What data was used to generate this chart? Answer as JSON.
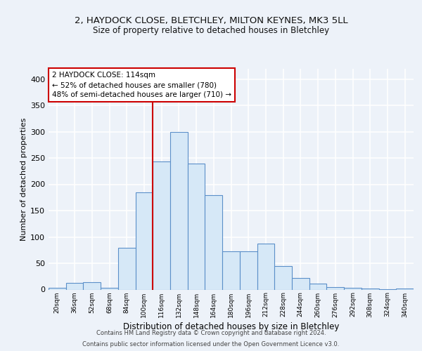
{
  "title": "2, HAYDOCK CLOSE, BLETCHLEY, MILTON KEYNES, MK3 5LL",
  "subtitle": "Size of property relative to detached houses in Bletchley",
  "xlabel": "Distribution of detached houses by size in Bletchley",
  "ylabel": "Number of detached properties",
  "bar_values": [
    3,
    13,
    14,
    3,
    80,
    185,
    243,
    300,
    240,
    180,
    73,
    73,
    88,
    45,
    22,
    11,
    5,
    3,
    2,
    1,
    2
  ],
  "bin_labels": [
    "20sqm",
    "36sqm",
    "52sqm",
    "68sqm",
    "84sqm",
    "100sqm",
    "116sqm",
    "132sqm",
    "148sqm",
    "164sqm",
    "180sqm",
    "196sqm",
    "212sqm",
    "228sqm",
    "244sqm",
    "260sqm",
    "276sqm",
    "292sqm",
    "308sqm",
    "324sqm",
    "340sqm"
  ],
  "bar_color": "#d6e8f7",
  "bar_edge_color": "#5b8fc9",
  "vline_color": "#cc0000",
  "annotation_text": "2 HAYDOCK CLOSE: 114sqm\n← 52% of detached houses are smaller (780)\n48% of semi-detached houses are larger (710) →",
  "annotation_box_color": "#ffffff",
  "annotation_box_edge": "#cc0000",
  "footer_line1": "Contains HM Land Registry data © Crown copyright and database right 2024.",
  "footer_line2": "Contains public sector information licensed under the Open Government Licence v3.0.",
  "ylim": [
    0,
    420
  ],
  "yticks": [
    0,
    50,
    100,
    150,
    200,
    250,
    300,
    350,
    400
  ],
  "background_color": "#edf2f9",
  "grid_color": "#ffffff",
  "vline_pos": 5.5
}
